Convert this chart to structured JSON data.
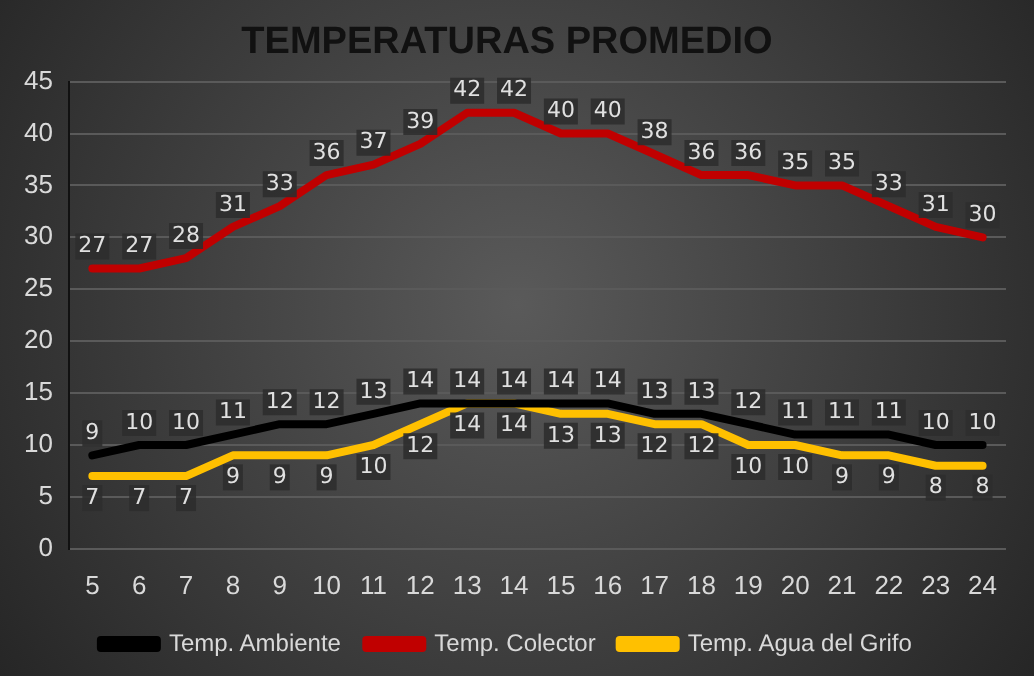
{
  "chart_data": {
    "type": "line",
    "title": "TEMPERATURAS PROMEDIO",
    "categories": [
      "5",
      "6",
      "7",
      "8",
      "9",
      "10",
      "11",
      "12",
      "13",
      "14",
      "15",
      "16",
      "17",
      "18",
      "19",
      "20",
      "21",
      "22",
      "23",
      "24"
    ],
    "series": [
      {
        "name": "Temp. Ambiente",
        "color": "#000000",
        "values": [
          9,
          10,
          10,
          11,
          12,
          12,
          13,
          14,
          14,
          14,
          14,
          14,
          13,
          13,
          12,
          11,
          11,
          11,
          10,
          10
        ]
      },
      {
        "name": "Temp. Colector",
        "color": "#c00000",
        "values": [
          27,
          27,
          28,
          31,
          33,
          36,
          37,
          39,
          42,
          42,
          40,
          40,
          38,
          36,
          36,
          35,
          35,
          33,
          31,
          30
        ]
      },
      {
        "name": "Temp. Agua del Grifo",
        "color": "#ffc000",
        "values": [
          7,
          7,
          7,
          9,
          9,
          9,
          10,
          12,
          14,
          14,
          13,
          13,
          12,
          12,
          10,
          10,
          9,
          9,
          8,
          8
        ]
      }
    ],
    "ylim": [
      0,
      45
    ],
    "yticks": [
      0,
      5,
      10,
      15,
      20,
      25,
      30,
      35,
      40,
      45
    ],
    "grid": "y",
    "legend": "bottom",
    "marker": "none",
    "line_style": "solid",
    "data_labels": true
  }
}
